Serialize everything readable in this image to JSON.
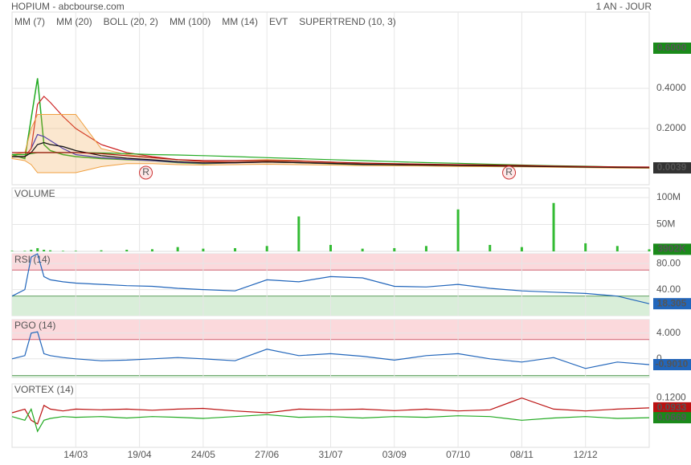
{
  "header": {
    "title": "HOPIUM - abcbourse.com",
    "period": "1 AN - JOUR"
  },
  "chart_data": [
    {
      "type": "line",
      "x": [
        0,
        2,
        3,
        4,
        5,
        6,
        8,
        10,
        14,
        18,
        22,
        26,
        30,
        35,
        40,
        45,
        50,
        55,
        60,
        65,
        70,
        75,
        80,
        85,
        90,
        95,
        100
      ],
      "xlim": [
        0,
        100
      ],
      "ylim": [
        -0.08,
        0.78
      ],
      "yticks": [
        {
          "value": 0.2,
          "label": "0.2000"
        },
        {
          "value": 0.4,
          "label": "0.4000"
        }
      ],
      "grid": true,
      "price": {
        "color": "#22aa22",
        "values": [
          0.07,
          0.05,
          0.25,
          0.45,
          0.12,
          0.09,
          0.07,
          0.06,
          0.05,
          0.045,
          0.04,
          0.03,
          0.025,
          0.03,
          0.035,
          0.03,
          0.025,
          0.02,
          0.02,
          0.018,
          0.015,
          0.014,
          0.012,
          0.01,
          0.008,
          0.006,
          0.0039
        ]
      },
      "series": [
        {
          "name": "MM (7)",
          "color": "#2222cc",
          "values": [
            0.06,
            0.06,
            0.1,
            0.17,
            0.16,
            0.14,
            0.1,
            0.07,
            0.055,
            0.047,
            0.04,
            0.032,
            0.027,
            0.029,
            0.033,
            0.03,
            0.026,
            0.021,
            0.02,
            0.018,
            0.016,
            0.014,
            0.012,
            0.01,
            0.008,
            0.006,
            0.005
          ]
        },
        {
          "name": "MM (20)",
          "color": "#cc2222",
          "values": [
            0.06,
            0.06,
            0.1,
            0.32,
            0.36,
            0.33,
            0.26,
            0.2,
            0.12,
            0.08,
            0.06,
            0.045,
            0.035,
            0.032,
            0.034,
            0.031,
            0.028,
            0.023,
            0.021,
            0.019,
            0.016,
            0.015,
            0.013,
            0.011,
            0.009,
            0.007,
            0.006
          ]
        },
        {
          "name": "BOLL (20, 2)",
          "color": "#f0a040",
          "upper": [
            0.07,
            0.08,
            0.2,
            0.27,
            0.27,
            0.27,
            0.27,
            0.27,
            0.1,
            0.07,
            0.055,
            0.045,
            0.04,
            0.04,
            0.045,
            0.04,
            0.033,
            0.027,
            0.025,
            0.022,
            0.019,
            0.017,
            0.015,
            0.013,
            0.011,
            0.009,
            0.008
          ],
          "lower": [
            0.05,
            0.04,
            0.02,
            -0.02,
            -0.02,
            -0.02,
            -0.02,
            -0.02,
            0.01,
            0.025,
            0.025,
            0.02,
            0.018,
            0.02,
            0.022,
            0.02,
            0.018,
            0.015,
            0.014,
            0.013,
            0.011,
            0.01,
            0.009,
            0.007,
            0.005,
            0.003,
            0.002
          ]
        },
        {
          "name": "MM (100)",
          "color": "#22aa22",
          "values": [
            0.07,
            0.07,
            0.075,
            0.08,
            0.08,
            0.08,
            0.08,
            0.08,
            0.078,
            0.075,
            0.07,
            0.068,
            0.065,
            0.06,
            0.055,
            0.05,
            0.045,
            0.04,
            0.035,
            0.03,
            0.027,
            0.022,
            0.018,
            0.015,
            0.012,
            0.009,
            0.007
          ]
        },
        {
          "name": "MM (14)",
          "color": "#111111",
          "values": [
            0.06,
            0.06,
            0.08,
            0.12,
            0.13,
            0.12,
            0.11,
            0.09,
            0.065,
            0.052,
            0.044,
            0.035,
            0.029,
            0.03,
            0.033,
            0.03,
            0.026,
            0.022,
            0.02,
            0.018,
            0.016,
            0.014,
            0.012,
            0.01,
            0.008,
            0.006,
            0.005
          ]
        },
        {
          "name": "EVT",
          "color": "#111111",
          "events": [
            {
              "x": 21,
              "label": "R"
            },
            {
              "x": 78,
              "label": "R"
            }
          ]
        },
        {
          "name": "SUPERTREND (10, 3)",
          "color": "#aa1111",
          "values": [
            0.08,
            0.08,
            0.08,
            0.08,
            0.08,
            0.08,
            0.08,
            0.08,
            0.075,
            0.065,
            0.055,
            0.045,
            0.04,
            0.04,
            0.04,
            0.038,
            0.033,
            0.028,
            0.025,
            0.022,
            0.02,
            0.018,
            0.016,
            0.013,
            0.011,
            0.009,
            0.008
          ]
        }
      ],
      "annotations": [
        {
          "value": 0.6,
          "label": "0.6000",
          "color": "#1a8a1a"
        },
        {
          "value": 0.0039,
          "label": "0.0039",
          "color": "#333333"
        }
      ]
    },
    {
      "type": "bar",
      "title": "VOLUME",
      "x": [
        0,
        2,
        3,
        4,
        5,
        6,
        8,
        10,
        14,
        18,
        22,
        26,
        30,
        35,
        40,
        45,
        50,
        55,
        60,
        65,
        70,
        75,
        80,
        85,
        90,
        95,
        100
      ],
      "xlim": [
        0,
        100
      ],
      "ylim": [
        0,
        118
      ],
      "yticks": [
        {
          "value": 50,
          "label": "50M"
        },
        {
          "value": 100,
          "label": "100M"
        }
      ],
      "grid": true,
      "color": "#33bb33",
      "values": [
        1,
        1,
        3,
        6,
        3,
        2,
        1,
        1,
        2,
        3,
        4,
        8,
        5,
        6,
        10,
        65,
        12,
        5,
        6,
        10,
        78,
        12,
        8,
        90,
        15,
        10,
        3.902
      ],
      "annotations": [
        {
          "value": 3.902,
          "label": "3902K",
          "color": "#1a8a1a"
        }
      ]
    },
    {
      "type": "line",
      "title": "RSI (14)",
      "x": [
        0,
        2,
        3,
        4,
        5,
        6,
        8,
        10,
        14,
        18,
        22,
        26,
        30,
        35,
        40,
        45,
        50,
        55,
        60,
        65,
        70,
        75,
        80,
        85,
        90,
        95,
        100
      ],
      "xlim": [
        0,
        100
      ],
      "ylim": [
        0,
        95
      ],
      "yticks": [
        {
          "value": 40,
          "label": "40.00"
        },
        {
          "value": 80,
          "label": "80.00"
        }
      ],
      "grid": true,
      "bands": {
        "high": 70,
        "low": 30
      },
      "series": [
        {
          "color": "#2266bb",
          "values": [
            30,
            40,
            90,
            95,
            60,
            55,
            52,
            50,
            48,
            46,
            45,
            42,
            40,
            38,
            55,
            52,
            60,
            58,
            45,
            44,
            48,
            42,
            38,
            36,
            34,
            30,
            18.305
          ]
        }
      ],
      "annotations": [
        {
          "value": 18.305,
          "label": "18.305",
          "color": "#2266bb"
        }
      ]
    },
    {
      "type": "line",
      "title": "PGO (14)",
      "x": [
        0,
        2,
        3,
        4,
        5,
        6,
        8,
        10,
        14,
        18,
        22,
        26,
        30,
        35,
        40,
        45,
        50,
        55,
        60,
        65,
        70,
        75,
        80,
        85,
        90,
        95,
        100
      ],
      "xlim": [
        0,
        100
      ],
      "ylim": [
        -2.9,
        6.1
      ],
      "yticks": [
        0,
        {
          "value": 4,
          "label": "4.000"
        }
      ],
      "grid": true,
      "bands": {
        "high": 3,
        "low": -2.6
      },
      "series": [
        {
          "color": "#2266bb",
          "values": [
            0,
            0.5,
            4,
            4.2,
            0.8,
            0.5,
            0.2,
            0,
            -0.3,
            -0.2,
            0,
            0.2,
            0,
            -0.3,
            1.5,
            0.5,
            0.8,
            0.4,
            -0.2,
            0.5,
            0.8,
            0,
            -0.5,
            0.2,
            -1.5,
            -0.5,
            -0.901
          ]
        }
      ],
      "annotations": [
        {
          "value": -0.901,
          "label": "-0.9010",
          "color": "#2266bb"
        }
      ]
    },
    {
      "type": "line",
      "title": "VORTEX (14)",
      "x": [
        0,
        2,
        3,
        4,
        5,
        6,
        8,
        10,
        14,
        18,
        22,
        26,
        30,
        35,
        40,
        45,
        50,
        55,
        60,
        65,
        70,
        75,
        80,
        85,
        90,
        95,
        100
      ],
      "xlim": [
        0,
        100
      ],
      "ylim": [
        -0.013,
        0.158
      ],
      "yticks": [
        {
          "value": 0.12,
          "label": "0.1200"
        }
      ],
      "grid": true,
      "xticks": [
        {
          "value": 10,
          "label": "14/03"
        },
        {
          "value": 20,
          "label": "19/04"
        },
        {
          "value": 30,
          "label": "24/05"
        },
        {
          "value": 40,
          "label": "27/06"
        },
        {
          "value": 50,
          "label": "31/07"
        },
        {
          "value": 60,
          "label": "03/09"
        },
        {
          "value": 70,
          "label": "07/10"
        },
        {
          "value": 80,
          "label": "08/11"
        },
        {
          "value": 90,
          "label": "12/12"
        }
      ],
      "series": [
        {
          "color": "#bb1111",
          "values": [
            0.08,
            0.09,
            0.06,
            0.05,
            0.1,
            0.09,
            0.085,
            0.09,
            0.088,
            0.09,
            0.087,
            0.09,
            0.092,
            0.085,
            0.08,
            0.09,
            0.088,
            0.09,
            0.086,
            0.09,
            0.085,
            0.088,
            0.12,
            0.09,
            0.085,
            0.09,
            0.0933
          ]
        },
        {
          "color": "#22aa22",
          "values": [
            0.07,
            0.06,
            0.09,
            0.03,
            0.06,
            0.065,
            0.07,
            0.068,
            0.07,
            0.066,
            0.07,
            0.068,
            0.065,
            0.07,
            0.075,
            0.068,
            0.07,
            0.066,
            0.07,
            0.068,
            0.072,
            0.07,
            0.06,
            0.066,
            0.07,
            0.065,
            0.0669
          ]
        }
      ],
      "annotations": [
        {
          "value": 0.0933,
          "label": "0.0933",
          "color": "#bb1111"
        },
        {
          "value": 0.0669,
          "label": "0.0669",
          "color": "#1a8a1a"
        }
      ]
    }
  ]
}
